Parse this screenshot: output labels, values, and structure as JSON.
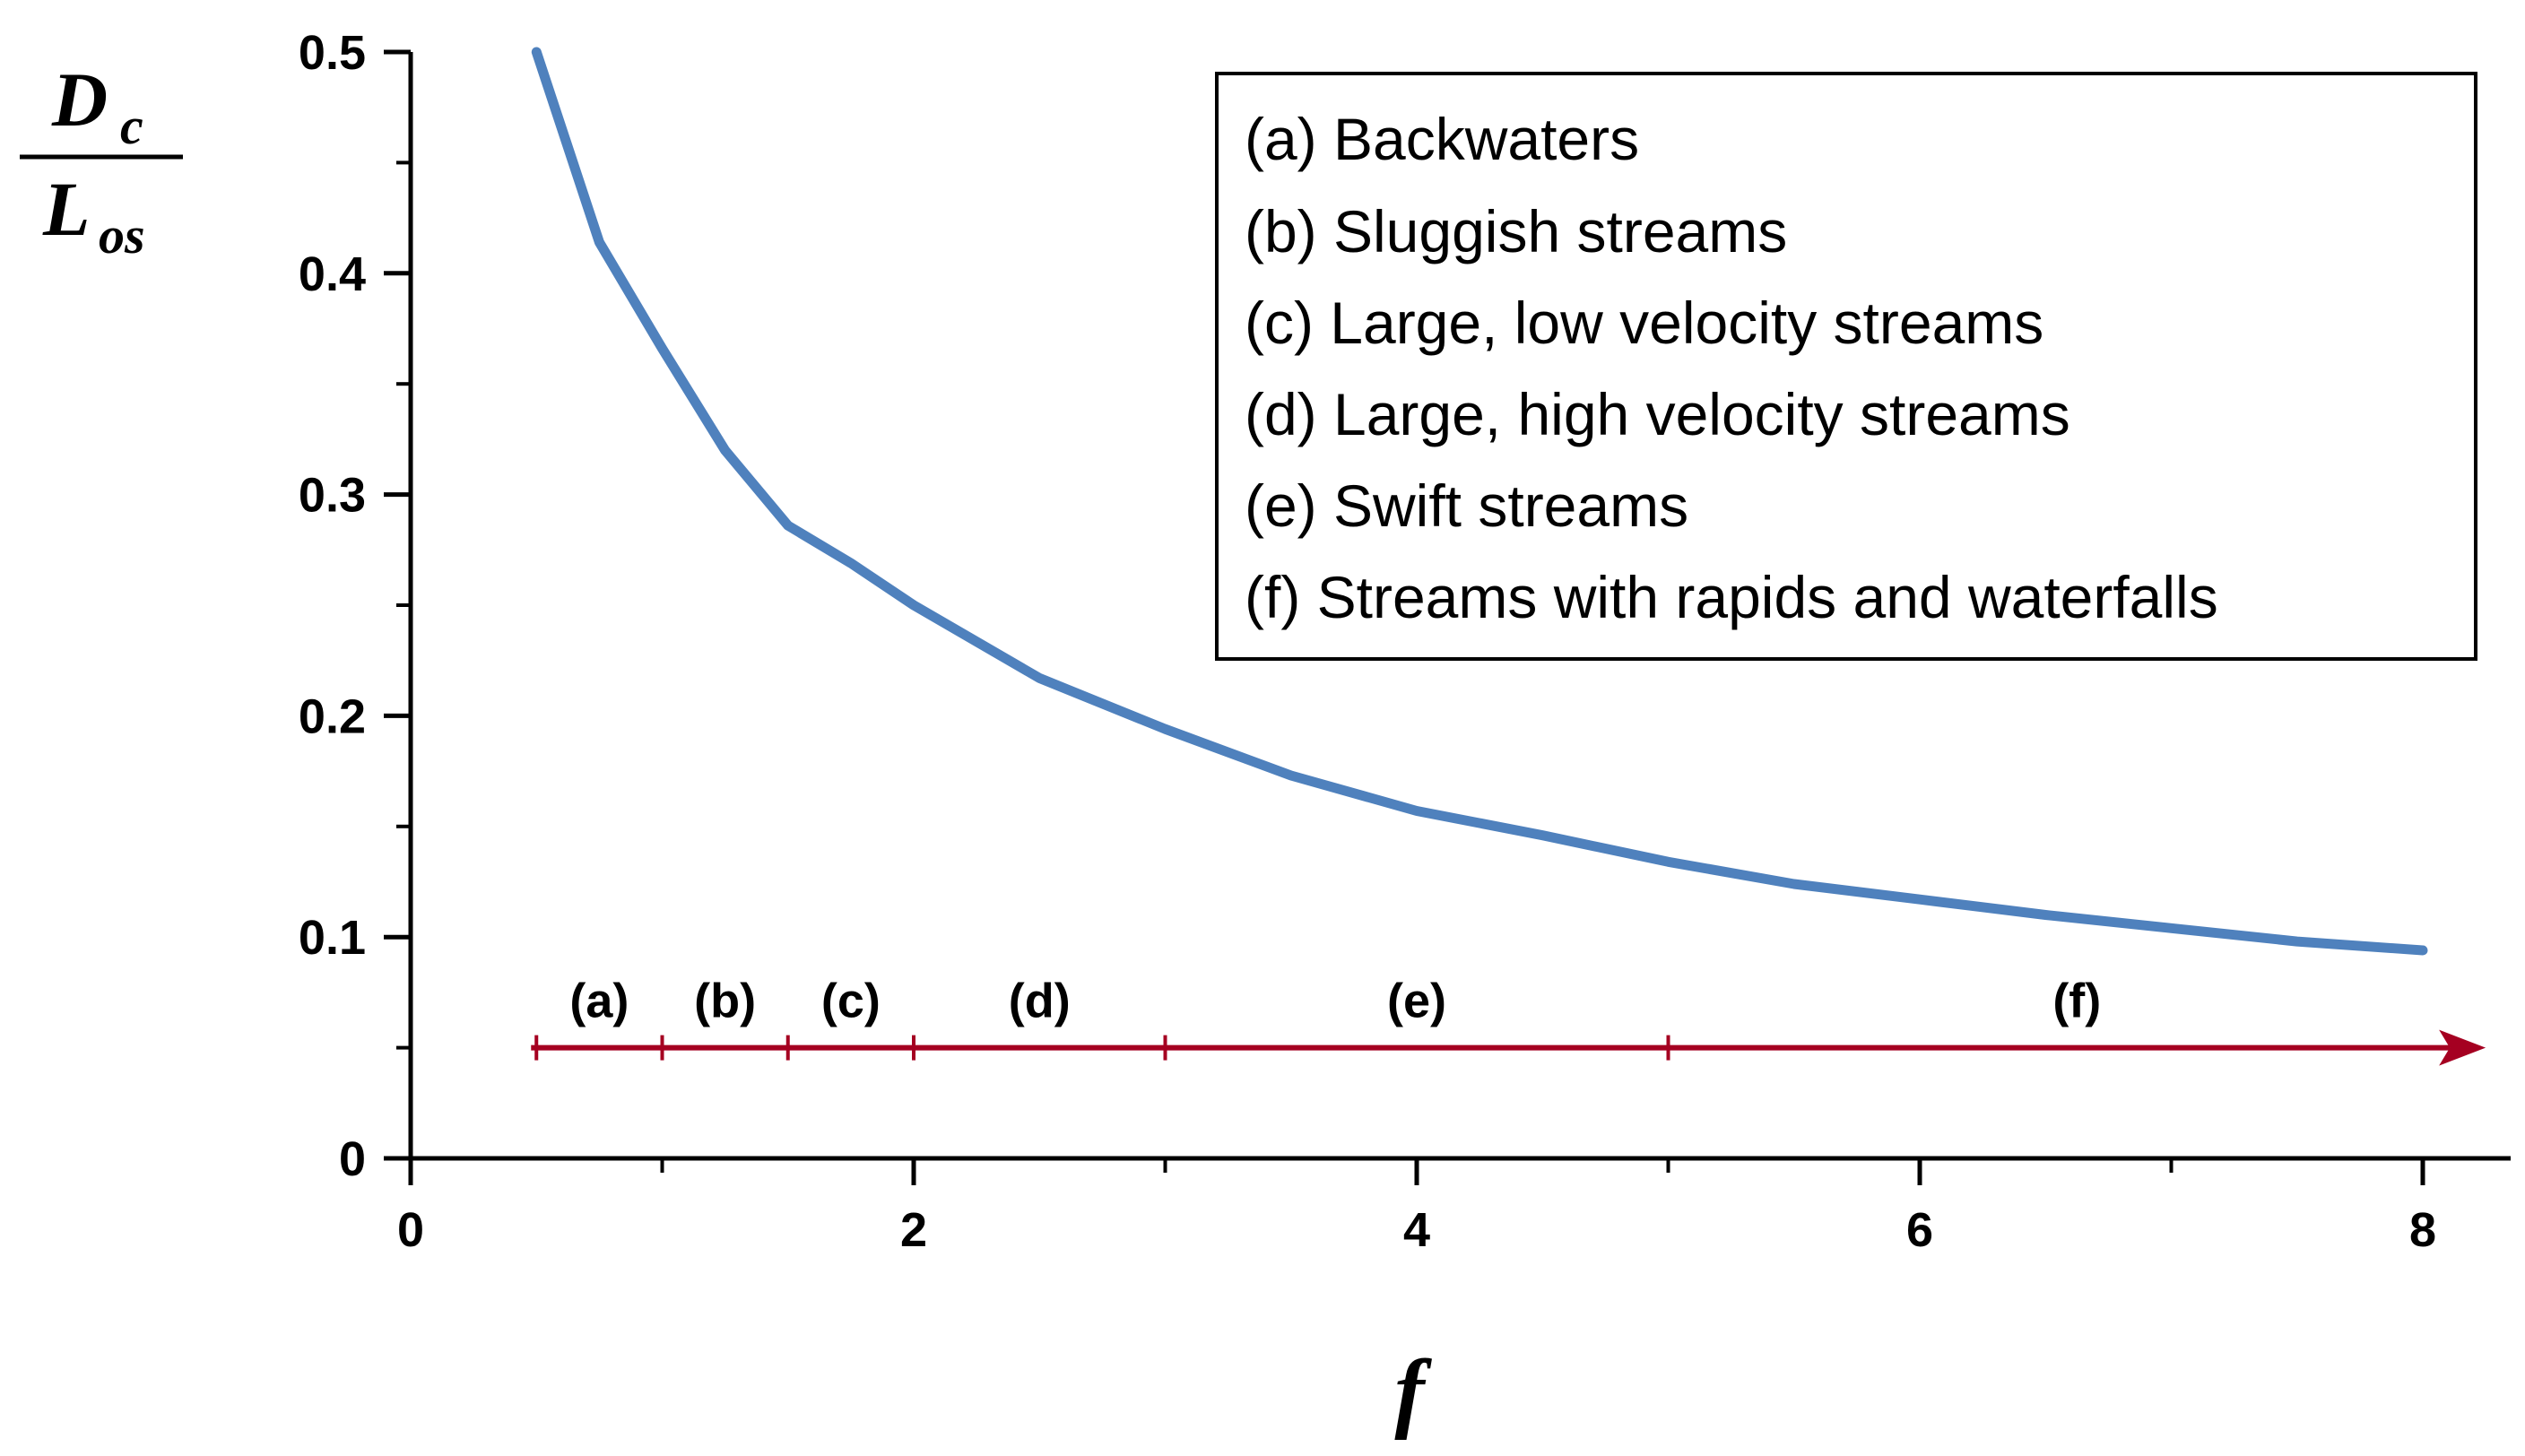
{
  "chart_data": {
    "type": "line",
    "xlabel": "f",
    "ylabel": {
      "main_top": "D",
      "sub_top": "c",
      "main_bottom": "L",
      "sub_bottom": "os"
    },
    "xlim": [
      0,
      8
    ],
    "ylim": [
      0,
      0.5
    ],
    "x_ticks": [
      "0",
      "2",
      "4",
      "6",
      "8"
    ],
    "y_ticks": [
      "0",
      "0.1",
      "0.2",
      "0.3",
      "0.4",
      "0.5"
    ],
    "grid": false,
    "legend_position": "top-right",
    "series": [
      {
        "color": "#4f81bd",
        "x": [
          0.5,
          0.75,
          1.0,
          1.25,
          1.5,
          1.75,
          2.0,
          2.5,
          3.0,
          3.5,
          4.0,
          4.5,
          5.0,
          5.5,
          6.0,
          6.5,
          7.0,
          7.5,
          8.0
        ],
        "y": [
          0.5,
          0.414,
          0.366,
          0.32,
          0.286,
          0.269,
          0.25,
          0.217,
          0.194,
          0.173,
          0.157,
          0.146,
          0.134,
          0.124,
          0.117,
          0.11,
          0.104,
          0.098,
          0.094
        ]
      }
    ],
    "regions": {
      "color": "#a50021",
      "arrow_y": 0.05,
      "start_x": 0.5,
      "end_x": 8.25,
      "boundaries": [
        0.5,
        1.0,
        1.5,
        2.0,
        3.0,
        5.0
      ],
      "labels": [
        {
          "text": "(a)",
          "from": 0.5,
          "to": 1.0
        },
        {
          "text": "(b)",
          "from": 1.0,
          "to": 1.5
        },
        {
          "text": "(c)",
          "from": 1.5,
          "to": 2.0
        },
        {
          "text": "(d)",
          "from": 2.0,
          "to": 3.0
        },
        {
          "text": "(e)",
          "from": 3.0,
          "to": 5.0
        },
        {
          "text": "(f)",
          "from": 5.0,
          "to": 8.25
        }
      ]
    },
    "legend": [
      "(a) Backwaters",
      "(b) Sluggish streams",
      "(c) Large, low velocity streams",
      "(d) Large, high velocity streams",
      "(e) Swift streams",
      "(f) Streams with rapids and waterfalls"
    ]
  }
}
